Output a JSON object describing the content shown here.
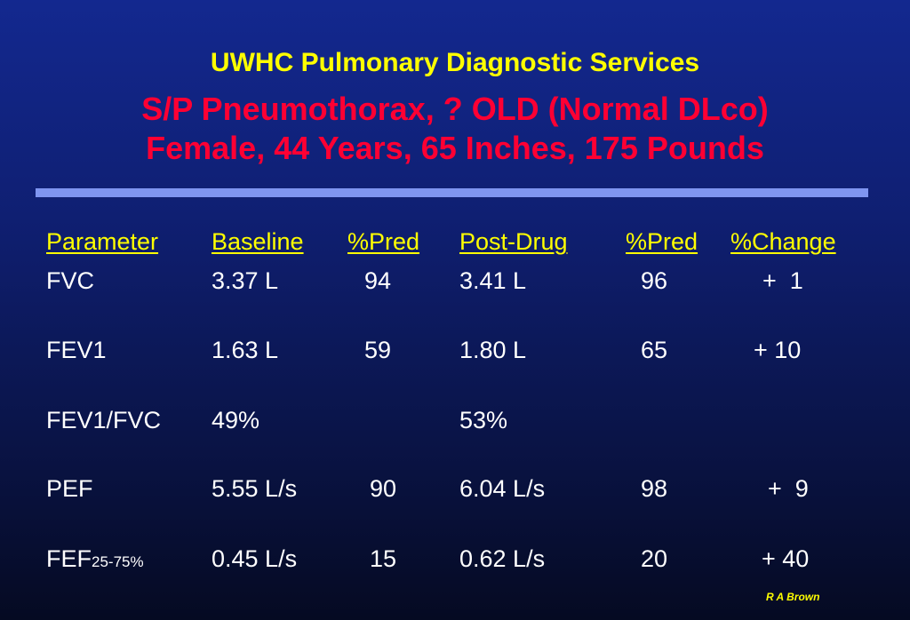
{
  "header": {
    "org": "UWHC Pulmonary Diagnostic Services",
    "diagnosis": "S/P Pneumothorax, ? OLD (Normal DLco)",
    "patient": "Female, 44 Years, 65 Inches, 175 Pounds"
  },
  "table": {
    "columns": [
      "Parameter",
      "Baseline",
      "%Pred",
      "Post-Drug",
      "%Pred",
      "%Change"
    ],
    "rows": [
      {
        "parameter": "FVC",
        "parameter_sub": "",
        "baseline": "3.37 L",
        "baseline_pred": "94",
        "post": "3.41 L",
        "post_pred": "96",
        "change": "+  1"
      },
      {
        "parameter": "FEV1",
        "parameter_sub": "",
        "baseline": "1.63 L",
        "baseline_pred": "59",
        "post": "1.80 L",
        "post_pred": "65",
        "change": "+ 10"
      },
      {
        "parameter": "FEV1/FVC",
        "parameter_sub": "",
        "baseline": "49%",
        "baseline_pred": "",
        "post": "53%",
        "post_pred": "",
        "change": ""
      },
      {
        "parameter": "PEF",
        "parameter_sub": "",
        "baseline": "5.55 L/s",
        "baseline_pred": "90",
        "post": "6.04 L/s",
        "post_pred": "98",
        "change": "+  9"
      },
      {
        "parameter": "FEF",
        "parameter_sub": "25-75%",
        "baseline": "0.45 L/s",
        "baseline_pred": "15",
        "post": "0.62 L/s",
        "post_pred": "20",
        "change": "+ 40"
      }
    ]
  },
  "footer": {
    "credit": "R A Brown"
  },
  "colors": {
    "title_yellow": "#ffff00",
    "title_red": "#ff0033",
    "divider": "#7f95f0",
    "text": "#ffffff"
  }
}
